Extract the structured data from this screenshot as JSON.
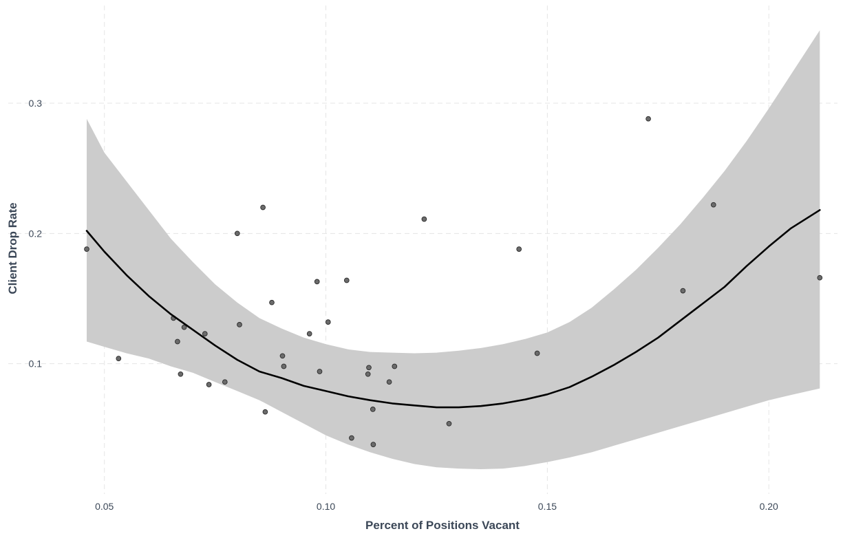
{
  "chart_data": {
    "type": "scatter",
    "title": "",
    "xlabel": "Percent of Positions Vacant",
    "ylabel": "Client Drop Rate",
    "xlim": [
      0.0415,
      0.2155
    ],
    "ylim": [
      0.0,
      0.375
    ],
    "x_ticks": [
      {
        "value": 0.05,
        "label": "0.05"
      },
      {
        "value": 0.1,
        "label": "0.10"
      },
      {
        "value": 0.15,
        "label": "0.15"
      },
      {
        "value": 0.2,
        "label": "0.20"
      }
    ],
    "y_ticks": [
      {
        "value": 0.1,
        "label": "0.1"
      },
      {
        "value": 0.2,
        "label": "0.2"
      },
      {
        "value": 0.3,
        "label": "0.3"
      }
    ],
    "grid": true,
    "grid_style": "dashed",
    "legend": "none",
    "colors": {
      "grid": "#e4e4e4",
      "ribbon": "#cccccc",
      "line": "#000000",
      "point_fill": "#6b6b6b",
      "point_stroke": "#2a2a2a",
      "text": "#3b4757"
    },
    "points": [
      {
        "x": 0.046,
        "y": 0.188
      },
      {
        "x": 0.0532,
        "y": 0.104
      },
      {
        "x": 0.0656,
        "y": 0.135
      },
      {
        "x": 0.0665,
        "y": 0.117
      },
      {
        "x": 0.0672,
        "y": 0.092
      },
      {
        "x": 0.068,
        "y": 0.128
      },
      {
        "x": 0.0727,
        "y": 0.123
      },
      {
        "x": 0.0736,
        "y": 0.084
      },
      {
        "x": 0.0772,
        "y": 0.086
      },
      {
        "x": 0.08,
        "y": 0.2
      },
      {
        "x": 0.0805,
        "y": 0.13
      },
      {
        "x": 0.0858,
        "y": 0.22
      },
      {
        "x": 0.0863,
        "y": 0.063
      },
      {
        "x": 0.0878,
        "y": 0.147
      },
      {
        "x": 0.0902,
        "y": 0.106
      },
      {
        "x": 0.0905,
        "y": 0.098
      },
      {
        "x": 0.0963,
        "y": 0.123
      },
      {
        "x": 0.098,
        "y": 0.163
      },
      {
        "x": 0.0986,
        "y": 0.094
      },
      {
        "x": 0.1005,
        "y": 0.132
      },
      {
        "x": 0.1047,
        "y": 0.164
      },
      {
        "x": 0.1058,
        "y": 0.043
      },
      {
        "x": 0.1095,
        "y": 0.092
      },
      {
        "x": 0.1097,
        "y": 0.097
      },
      {
        "x": 0.1106,
        "y": 0.065
      },
      {
        "x": 0.1107,
        "y": 0.038
      },
      {
        "x": 0.1143,
        "y": 0.086
      },
      {
        "x": 0.1155,
        "y": 0.098
      },
      {
        "x": 0.1222,
        "y": 0.211
      },
      {
        "x": 0.1278,
        "y": 0.054
      },
      {
        "x": 0.1436,
        "y": 0.188
      },
      {
        "x": 0.1477,
        "y": 0.108
      },
      {
        "x": 0.1728,
        "y": 0.288
      },
      {
        "x": 0.1806,
        "y": 0.156
      },
      {
        "x": 0.1875,
        "y": 0.222
      },
      {
        "x": 0.2115,
        "y": 0.166
      }
    ],
    "fit_line": [
      {
        "x": 0.046,
        "y": 0.202
      },
      {
        "x": 0.05,
        "y": 0.186
      },
      {
        "x": 0.055,
        "y": 0.168
      },
      {
        "x": 0.06,
        "y": 0.152
      },
      {
        "x": 0.065,
        "y": 0.138
      },
      {
        "x": 0.07,
        "y": 0.126
      },
      {
        "x": 0.075,
        "y": 0.114
      },
      {
        "x": 0.08,
        "y": 0.103
      },
      {
        "x": 0.085,
        "y": 0.094
      },
      {
        "x": 0.09,
        "y": 0.089
      },
      {
        "x": 0.095,
        "y": 0.083
      },
      {
        "x": 0.1,
        "y": 0.079
      },
      {
        "x": 0.105,
        "y": 0.075
      },
      {
        "x": 0.11,
        "y": 0.072
      },
      {
        "x": 0.115,
        "y": 0.0695
      },
      {
        "x": 0.12,
        "y": 0.068
      },
      {
        "x": 0.125,
        "y": 0.0665
      },
      {
        "x": 0.13,
        "y": 0.0665
      },
      {
        "x": 0.135,
        "y": 0.0675
      },
      {
        "x": 0.14,
        "y": 0.0695
      },
      {
        "x": 0.145,
        "y": 0.0725
      },
      {
        "x": 0.15,
        "y": 0.0765
      },
      {
        "x": 0.155,
        "y": 0.082
      },
      {
        "x": 0.16,
        "y": 0.09
      },
      {
        "x": 0.165,
        "y": 0.099
      },
      {
        "x": 0.17,
        "y": 0.109
      },
      {
        "x": 0.175,
        "y": 0.12
      },
      {
        "x": 0.18,
        "y": 0.133
      },
      {
        "x": 0.185,
        "y": 0.146
      },
      {
        "x": 0.19,
        "y": 0.159
      },
      {
        "x": 0.195,
        "y": 0.175
      },
      {
        "x": 0.2,
        "y": 0.19
      },
      {
        "x": 0.205,
        "y": 0.204
      },
      {
        "x": 0.2115,
        "y": 0.218
      }
    ],
    "ribbon_upper": [
      {
        "x": 0.046,
        "y": 0.288
      },
      {
        "x": 0.05,
        "y": 0.262
      },
      {
        "x": 0.055,
        "y": 0.24
      },
      {
        "x": 0.06,
        "y": 0.218
      },
      {
        "x": 0.065,
        "y": 0.196
      },
      {
        "x": 0.07,
        "y": 0.178
      },
      {
        "x": 0.075,
        "y": 0.161
      },
      {
        "x": 0.08,
        "y": 0.147
      },
      {
        "x": 0.085,
        "y": 0.135
      },
      {
        "x": 0.09,
        "y": 0.127
      },
      {
        "x": 0.095,
        "y": 0.12
      },
      {
        "x": 0.1,
        "y": 0.115
      },
      {
        "x": 0.105,
        "y": 0.111
      },
      {
        "x": 0.11,
        "y": 0.109
      },
      {
        "x": 0.115,
        "y": 0.1085
      },
      {
        "x": 0.12,
        "y": 0.108
      },
      {
        "x": 0.125,
        "y": 0.1085
      },
      {
        "x": 0.13,
        "y": 0.11
      },
      {
        "x": 0.135,
        "y": 0.112
      },
      {
        "x": 0.14,
        "y": 0.115
      },
      {
        "x": 0.145,
        "y": 0.119
      },
      {
        "x": 0.15,
        "y": 0.124
      },
      {
        "x": 0.155,
        "y": 0.132
      },
      {
        "x": 0.16,
        "y": 0.143
      },
      {
        "x": 0.165,
        "y": 0.157
      },
      {
        "x": 0.17,
        "y": 0.172
      },
      {
        "x": 0.175,
        "y": 0.189
      },
      {
        "x": 0.18,
        "y": 0.207
      },
      {
        "x": 0.185,
        "y": 0.227
      },
      {
        "x": 0.19,
        "y": 0.248
      },
      {
        "x": 0.195,
        "y": 0.271
      },
      {
        "x": 0.2,
        "y": 0.296
      },
      {
        "x": 0.205,
        "y": 0.322
      },
      {
        "x": 0.2115,
        "y": 0.356
      }
    ],
    "ribbon_lower": [
      {
        "x": 0.046,
        "y": 0.117
      },
      {
        "x": 0.05,
        "y": 0.113
      },
      {
        "x": 0.055,
        "y": 0.108
      },
      {
        "x": 0.06,
        "y": 0.104
      },
      {
        "x": 0.065,
        "y": 0.098
      },
      {
        "x": 0.07,
        "y": 0.093
      },
      {
        "x": 0.075,
        "y": 0.086
      },
      {
        "x": 0.08,
        "y": 0.079
      },
      {
        "x": 0.085,
        "y": 0.072
      },
      {
        "x": 0.09,
        "y": 0.063
      },
      {
        "x": 0.095,
        "y": 0.054
      },
      {
        "x": 0.1,
        "y": 0.045
      },
      {
        "x": 0.105,
        "y": 0.038
      },
      {
        "x": 0.11,
        "y": 0.032
      },
      {
        "x": 0.115,
        "y": 0.027
      },
      {
        "x": 0.12,
        "y": 0.023
      },
      {
        "x": 0.125,
        "y": 0.0205
      },
      {
        "x": 0.13,
        "y": 0.0195
      },
      {
        "x": 0.135,
        "y": 0.019
      },
      {
        "x": 0.14,
        "y": 0.0195
      },
      {
        "x": 0.145,
        "y": 0.0215
      },
      {
        "x": 0.15,
        "y": 0.0245
      },
      {
        "x": 0.155,
        "y": 0.028
      },
      {
        "x": 0.16,
        "y": 0.032
      },
      {
        "x": 0.165,
        "y": 0.037
      },
      {
        "x": 0.17,
        "y": 0.042
      },
      {
        "x": 0.175,
        "y": 0.047
      },
      {
        "x": 0.18,
        "y": 0.052
      },
      {
        "x": 0.185,
        "y": 0.057
      },
      {
        "x": 0.19,
        "y": 0.062
      },
      {
        "x": 0.195,
        "y": 0.067
      },
      {
        "x": 0.2,
        "y": 0.072
      },
      {
        "x": 0.205,
        "y": 0.076
      },
      {
        "x": 0.2115,
        "y": 0.081
      }
    ]
  }
}
